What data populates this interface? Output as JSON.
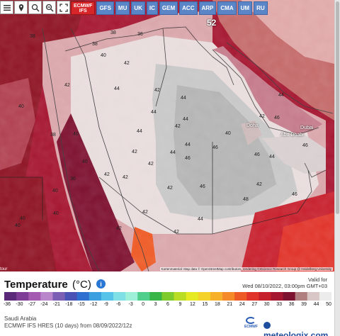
{
  "toolbar": {
    "menu_icon": "menu-icon",
    "pin_icon": "pin-icon",
    "zoom_in_icon": "zoom-in-icon",
    "zoom_out_icon": "zoom-out-icon",
    "fullscreen_icon": "fullscreen-icon"
  },
  "models": [
    {
      "label": "ECMWF IFS",
      "active": true
    },
    {
      "label": "GFS"
    },
    {
      "label": "MU"
    },
    {
      "label": "UK"
    },
    {
      "label": "IC"
    },
    {
      "label": "GEM"
    },
    {
      "label": "ACC"
    },
    {
      "label": "ARP"
    },
    {
      "label": "CMA"
    },
    {
      "label": "UM"
    },
    {
      "label": "RU"
    }
  ],
  "map": {
    "places": [
      "Doha",
      "Dubai",
      "Abu Dhabi"
    ],
    "highlight_value": "52",
    "values": [
      "38",
      "38",
      "40",
      "36",
      "38",
      "42",
      "40",
      "40",
      "40",
      "42",
      "44",
      "44",
      "42",
      "44",
      "42",
      "46",
      "44",
      "46",
      "42",
      "40",
      "44",
      "46",
      "44",
      "42",
      "44",
      "42",
      "46",
      "42",
      "48",
      "46",
      "44",
      "46",
      "40",
      "40",
      "42",
      "42",
      "40",
      "42",
      "40",
      "42",
      "42",
      "36",
      "38",
      "42",
      "44",
      "44",
      "46"
    ],
    "attribution": "Kartenmaterial: Map data © OpenStreetMap contributors, rendering GIScience Research Group @ Heidelberg University",
    "tour_label": "tour"
  },
  "legend": {
    "title": "Temperature",
    "unit": "(°C)",
    "valid_for_label": "Valid for",
    "valid_time": "Wed 08/10/2022, 03:00pm GMT+03",
    "ticks": [
      "-36",
      "-30",
      "-27",
      "-24",
      "-21",
      "-18",
      "-15",
      "-12",
      "-9",
      "-6",
      "-3",
      "0",
      "3",
      "6",
      "9",
      "12",
      "15",
      "18",
      "21",
      "24",
      "27",
      "30",
      "33",
      "36",
      "39",
      "44",
      "50"
    ],
    "colors": [
      "#5a2a79",
      "#7e3c96",
      "#a35ab0",
      "#b985cb",
      "#7b5fb5",
      "#4a53b5",
      "#2f6fcf",
      "#3b9fe0",
      "#58c3e8",
      "#7fe0e6",
      "#9ff0d8",
      "#4fcf8b",
      "#39b548",
      "#7ecb2d",
      "#b9dd24",
      "#e6ea22",
      "#f4d22a",
      "#f6b02a",
      "#f58a28",
      "#ee5a25",
      "#e0342a",
      "#c7202d",
      "#a51630",
      "#7d1130",
      "#b08080",
      "#d9c6c6",
      "#ececec"
    ],
    "region": "Saudi Arabia",
    "model_run": "ECMWF IFS HRES (10 days) from 08/09/2022/12z",
    "ecmwf_logo": "ECMWF",
    "brand": "meteologix.com"
  }
}
